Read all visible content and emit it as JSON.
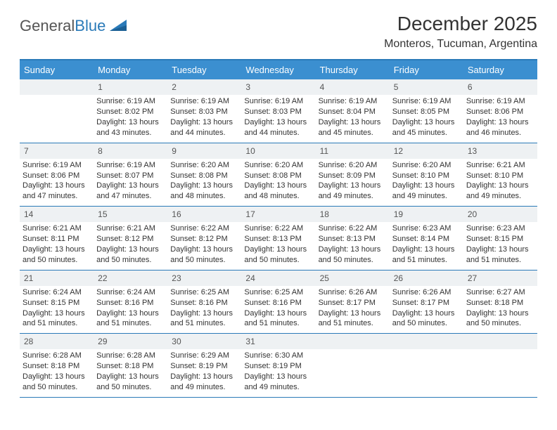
{
  "logo": {
    "word1": "General",
    "word2": "Blue"
  },
  "title": "December 2025",
  "location": "Monteros, Tucuman, Argentina",
  "colors": {
    "header_bg": "#3b8fd0",
    "border": "#2a7ab8",
    "datebar_bg": "#eef1f3",
    "text": "#333333"
  },
  "day_names": [
    "Sunday",
    "Monday",
    "Tuesday",
    "Wednesday",
    "Thursday",
    "Friday",
    "Saturday"
  ],
  "weeks": [
    [
      {
        "date": "",
        "sunrise": "",
        "sunset": "",
        "daylight": ""
      },
      {
        "date": "1",
        "sunrise": "Sunrise: 6:19 AM",
        "sunset": "Sunset: 8:02 PM",
        "daylight": "Daylight: 13 hours and 43 minutes."
      },
      {
        "date": "2",
        "sunrise": "Sunrise: 6:19 AM",
        "sunset": "Sunset: 8:03 PM",
        "daylight": "Daylight: 13 hours and 44 minutes."
      },
      {
        "date": "3",
        "sunrise": "Sunrise: 6:19 AM",
        "sunset": "Sunset: 8:03 PM",
        "daylight": "Daylight: 13 hours and 44 minutes."
      },
      {
        "date": "4",
        "sunrise": "Sunrise: 6:19 AM",
        "sunset": "Sunset: 8:04 PM",
        "daylight": "Daylight: 13 hours and 45 minutes."
      },
      {
        "date": "5",
        "sunrise": "Sunrise: 6:19 AM",
        "sunset": "Sunset: 8:05 PM",
        "daylight": "Daylight: 13 hours and 45 minutes."
      },
      {
        "date": "6",
        "sunrise": "Sunrise: 6:19 AM",
        "sunset": "Sunset: 8:06 PM",
        "daylight": "Daylight: 13 hours and 46 minutes."
      }
    ],
    [
      {
        "date": "7",
        "sunrise": "Sunrise: 6:19 AM",
        "sunset": "Sunset: 8:06 PM",
        "daylight": "Daylight: 13 hours and 47 minutes."
      },
      {
        "date": "8",
        "sunrise": "Sunrise: 6:19 AM",
        "sunset": "Sunset: 8:07 PM",
        "daylight": "Daylight: 13 hours and 47 minutes."
      },
      {
        "date": "9",
        "sunrise": "Sunrise: 6:20 AM",
        "sunset": "Sunset: 8:08 PM",
        "daylight": "Daylight: 13 hours and 48 minutes."
      },
      {
        "date": "10",
        "sunrise": "Sunrise: 6:20 AM",
        "sunset": "Sunset: 8:08 PM",
        "daylight": "Daylight: 13 hours and 48 minutes."
      },
      {
        "date": "11",
        "sunrise": "Sunrise: 6:20 AM",
        "sunset": "Sunset: 8:09 PM",
        "daylight": "Daylight: 13 hours and 49 minutes."
      },
      {
        "date": "12",
        "sunrise": "Sunrise: 6:20 AM",
        "sunset": "Sunset: 8:10 PM",
        "daylight": "Daylight: 13 hours and 49 minutes."
      },
      {
        "date": "13",
        "sunrise": "Sunrise: 6:21 AM",
        "sunset": "Sunset: 8:10 PM",
        "daylight": "Daylight: 13 hours and 49 minutes."
      }
    ],
    [
      {
        "date": "14",
        "sunrise": "Sunrise: 6:21 AM",
        "sunset": "Sunset: 8:11 PM",
        "daylight": "Daylight: 13 hours and 50 minutes."
      },
      {
        "date": "15",
        "sunrise": "Sunrise: 6:21 AM",
        "sunset": "Sunset: 8:12 PM",
        "daylight": "Daylight: 13 hours and 50 minutes."
      },
      {
        "date": "16",
        "sunrise": "Sunrise: 6:22 AM",
        "sunset": "Sunset: 8:12 PM",
        "daylight": "Daylight: 13 hours and 50 minutes."
      },
      {
        "date": "17",
        "sunrise": "Sunrise: 6:22 AM",
        "sunset": "Sunset: 8:13 PM",
        "daylight": "Daylight: 13 hours and 50 minutes."
      },
      {
        "date": "18",
        "sunrise": "Sunrise: 6:22 AM",
        "sunset": "Sunset: 8:13 PM",
        "daylight": "Daylight: 13 hours and 50 minutes."
      },
      {
        "date": "19",
        "sunrise": "Sunrise: 6:23 AM",
        "sunset": "Sunset: 8:14 PM",
        "daylight": "Daylight: 13 hours and 51 minutes."
      },
      {
        "date": "20",
        "sunrise": "Sunrise: 6:23 AM",
        "sunset": "Sunset: 8:15 PM",
        "daylight": "Daylight: 13 hours and 51 minutes."
      }
    ],
    [
      {
        "date": "21",
        "sunrise": "Sunrise: 6:24 AM",
        "sunset": "Sunset: 8:15 PM",
        "daylight": "Daylight: 13 hours and 51 minutes."
      },
      {
        "date": "22",
        "sunrise": "Sunrise: 6:24 AM",
        "sunset": "Sunset: 8:16 PM",
        "daylight": "Daylight: 13 hours and 51 minutes."
      },
      {
        "date": "23",
        "sunrise": "Sunrise: 6:25 AM",
        "sunset": "Sunset: 8:16 PM",
        "daylight": "Daylight: 13 hours and 51 minutes."
      },
      {
        "date": "24",
        "sunrise": "Sunrise: 6:25 AM",
        "sunset": "Sunset: 8:16 PM",
        "daylight": "Daylight: 13 hours and 51 minutes."
      },
      {
        "date": "25",
        "sunrise": "Sunrise: 6:26 AM",
        "sunset": "Sunset: 8:17 PM",
        "daylight": "Daylight: 13 hours and 51 minutes."
      },
      {
        "date": "26",
        "sunrise": "Sunrise: 6:26 AM",
        "sunset": "Sunset: 8:17 PM",
        "daylight": "Daylight: 13 hours and 50 minutes."
      },
      {
        "date": "27",
        "sunrise": "Sunrise: 6:27 AM",
        "sunset": "Sunset: 8:18 PM",
        "daylight": "Daylight: 13 hours and 50 minutes."
      }
    ],
    [
      {
        "date": "28",
        "sunrise": "Sunrise: 6:28 AM",
        "sunset": "Sunset: 8:18 PM",
        "daylight": "Daylight: 13 hours and 50 minutes."
      },
      {
        "date": "29",
        "sunrise": "Sunrise: 6:28 AM",
        "sunset": "Sunset: 8:18 PM",
        "daylight": "Daylight: 13 hours and 50 minutes."
      },
      {
        "date": "30",
        "sunrise": "Sunrise: 6:29 AM",
        "sunset": "Sunset: 8:19 PM",
        "daylight": "Daylight: 13 hours and 49 minutes."
      },
      {
        "date": "31",
        "sunrise": "Sunrise: 6:30 AM",
        "sunset": "Sunset: 8:19 PM",
        "daylight": "Daylight: 13 hours and 49 minutes."
      },
      {
        "date": "",
        "sunrise": "",
        "sunset": "",
        "daylight": ""
      },
      {
        "date": "",
        "sunrise": "",
        "sunset": "",
        "daylight": ""
      },
      {
        "date": "",
        "sunrise": "",
        "sunset": "",
        "daylight": ""
      }
    ]
  ]
}
